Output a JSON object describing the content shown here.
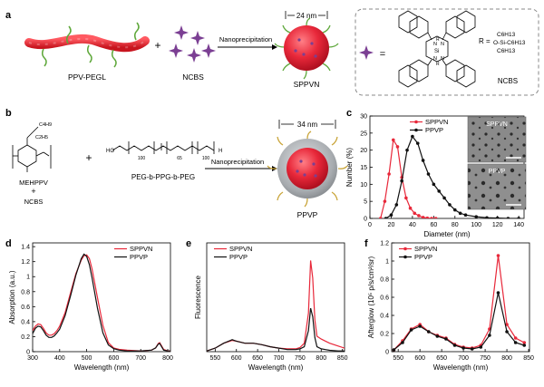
{
  "figure": {
    "panel_labels": [
      "a",
      "b",
      "c",
      "d",
      "e",
      "f"
    ],
    "colors": {
      "sppvn": "#e8283a",
      "ppvp": "#111111",
      "chain": "#e3232f",
      "ncbs": "#7b3f93",
      "peg": "#5fa83b",
      "shell": "#9fa3a6"
    }
  },
  "panel_a": {
    "polymer_label": "PPV-PEGL",
    "plus": "+",
    "dye_label": "NCBS",
    "method": "Nanoprecipitation",
    "size": "24 nm",
    "product": "SPPVN",
    "legend_eq": "=",
    "structure_name": "NCBS",
    "r_label": "R =",
    "r_groups": [
      "C6H13",
      "O-Si-C6H13",
      "C6H13"
    ],
    "core_atoms": [
      "N",
      "N",
      "N",
      "N",
      "Si",
      "R",
      "R"
    ]
  },
  "panel_b": {
    "monomer_label": "MEHPPV",
    "plus_under": "+",
    "dye_label": "NCBS",
    "plus": "+",
    "copolymer_label": "PEG-b-PPG-b-PEG",
    "subscripts": [
      "100",
      "65",
      "100"
    ],
    "method": "Nanoprecipitation",
    "size": "34 nm",
    "product": "PPVP",
    "side_chains": [
      "C4H9",
      "C2H5"
    ]
  },
  "chart_data": [
    {
      "panel": "c",
      "type": "line",
      "xlabel": "Diameter (nm)",
      "ylabel": "Number (%)",
      "xlim": [
        0,
        145
      ],
      "ylim": [
        0,
        30
      ],
      "xticks": [
        0,
        20,
        40,
        60,
        80,
        100,
        120,
        140
      ],
      "yticks": [
        0,
        5,
        10,
        15,
        20,
        25,
        30
      ],
      "legend": "top-right",
      "insets": [
        "SPPVN",
        "PPVP"
      ],
      "series": [
        {
          "name": "SPPVN",
          "color": "#e8283a",
          "x": [
            10,
            14,
            18,
            22,
            26,
            30,
            34,
            38,
            42,
            46,
            50,
            54,
            58,
            62
          ],
          "y": [
            0,
            5,
            13,
            23,
            21,
            12,
            6,
            3,
            1.5,
            0.8,
            0.3,
            0.1,
            0,
            0
          ]
        },
        {
          "name": "PPVP",
          "color": "#111111",
          "x": [
            15,
            20,
            25,
            30,
            35,
            40,
            45,
            50,
            55,
            60,
            65,
            70,
            75,
            80,
            85,
            90,
            100,
            110,
            120,
            130,
            140
          ],
          "y": [
            0,
            1,
            4,
            11,
            20,
            24,
            22,
            17,
            13,
            10,
            8,
            6,
            4,
            2.5,
            1.5,
            1,
            0.5,
            0.2,
            0.1,
            0,
            0
          ]
        }
      ]
    },
    {
      "panel": "d",
      "type": "line",
      "xlabel": "Wavelength (nm)",
      "ylabel": "Absorption (a.u.)",
      "xlim": [
        300,
        810
      ],
      "ylim": [
        0,
        1.45
      ],
      "xticks": [
        300,
        400,
        500,
        600,
        700,
        800
      ],
      "yticks": [
        0.0,
        0.2,
        0.4,
        0.6,
        0.8,
        1.0,
        1.2,
        1.4
      ],
      "legend": "top-right",
      "series": [
        {
          "name": "SPPVN",
          "color": "#e8283a",
          "x": [
            300,
            310,
            320,
            330,
            340,
            350,
            360,
            370,
            380,
            390,
            400,
            420,
            440,
            460,
            480,
            490,
            500,
            510,
            520,
            540,
            560,
            580,
            600,
            620,
            650,
            700,
            740,
            755,
            765,
            770,
            775,
            785,
            800,
            810
          ],
          "y": [
            0.28,
            0.34,
            0.37,
            0.36,
            0.31,
            0.25,
            0.22,
            0.22,
            0.24,
            0.28,
            0.34,
            0.52,
            0.78,
            1.04,
            1.22,
            1.28,
            1.29,
            1.24,
            1.1,
            0.72,
            0.35,
            0.12,
            0.05,
            0.03,
            0.02,
            0.01,
            0.02,
            0.05,
            0.11,
            0.12,
            0.09,
            0.03,
            0.01,
            0.01
          ]
        },
        {
          "name": "PPVP",
          "color": "#111111",
          "x": [
            300,
            310,
            320,
            330,
            340,
            350,
            360,
            370,
            380,
            390,
            400,
            420,
            440,
            460,
            480,
            490,
            500,
            510,
            520,
            540,
            560,
            580,
            600,
            620,
            650,
            700,
            740,
            755,
            765,
            770,
            775,
            785,
            800,
            810
          ],
          "y": [
            0.24,
            0.31,
            0.34,
            0.33,
            0.28,
            0.22,
            0.19,
            0.19,
            0.21,
            0.25,
            0.3,
            0.48,
            0.74,
            1.02,
            1.24,
            1.3,
            1.27,
            1.16,
            0.98,
            0.58,
            0.25,
            0.09,
            0.04,
            0.02,
            0.01,
            0.01,
            0.02,
            0.05,
            0.1,
            0.11,
            0.08,
            0.02,
            0.01,
            0.01
          ]
        }
      ]
    },
    {
      "panel": "e",
      "type": "line",
      "xlabel": "Wavelength (nm)",
      "ylabel": "Fluorescence",
      "xlim": [
        530,
        855
      ],
      "ylim": [
        0,
        1.55
      ],
      "xticks": [
        550,
        600,
        650,
        700,
        750,
        800,
        850
      ],
      "yticks": [],
      "legend": "top-left",
      "series": [
        {
          "name": "SPPVN",
          "color": "#e8283a",
          "x": [
            530,
            550,
            570,
            590,
            600,
            620,
            640,
            660,
            680,
            700,
            720,
            740,
            750,
            760,
            770,
            775,
            780,
            785,
            790,
            800,
            810,
            820,
            840,
            855
          ],
          "y": [
            0.01,
            0.05,
            0.12,
            0.16,
            0.15,
            0.12,
            0.12,
            0.1,
            0.07,
            0.05,
            0.04,
            0.04,
            0.06,
            0.12,
            0.55,
            1.3,
            1.05,
            0.45,
            0.22,
            0.18,
            0.15,
            0.12,
            0.08,
            0.05
          ]
        },
        {
          "name": "PPVP",
          "color": "#111111",
          "x": [
            530,
            550,
            570,
            590,
            600,
            620,
            640,
            660,
            680,
            700,
            720,
            740,
            750,
            760,
            770,
            775,
            780,
            785,
            790,
            800,
            810,
            820,
            840,
            855
          ],
          "y": [
            0.01,
            0.05,
            0.12,
            0.17,
            0.15,
            0.12,
            0.12,
            0.1,
            0.07,
            0.05,
            0.03,
            0.03,
            0.04,
            0.07,
            0.3,
            0.62,
            0.5,
            0.2,
            0.07,
            0.04,
            0.03,
            0.02,
            0.01,
            0.01
          ]
        }
      ]
    },
    {
      "panel": "f",
      "type": "line",
      "xlabel": "Wavelength (nm)",
      "ylabel": "Afterglow (10⁵ p/s/cm²/sr)",
      "xlim": [
        535,
        852
      ],
      "ylim": [
        0,
        1.2
      ],
      "xticks": [
        550,
        600,
        650,
        700,
        750,
        800,
        850
      ],
      "yticks": [
        0.0,
        0.2,
        0.4,
        0.6,
        0.8,
        1.0,
        1.2
      ],
      "legend": "top-left",
      "series": [
        {
          "name": "SPPVN",
          "color": "#e8283a",
          "x": [
            540,
            560,
            580,
            600,
            620,
            640,
            660,
            680,
            700,
            720,
            740,
            760,
            780,
            800,
            820,
            840
          ],
          "y": [
            0.02,
            0.12,
            0.25,
            0.3,
            0.22,
            0.18,
            0.15,
            0.08,
            0.05,
            0.04,
            0.07,
            0.25,
            1.06,
            0.3,
            0.15,
            0.1
          ]
        },
        {
          "name": "PPVP",
          "color": "#111111",
          "x": [
            540,
            560,
            580,
            600,
            620,
            640,
            660,
            680,
            700,
            720,
            740,
            760,
            780,
            800,
            820,
            840
          ],
          "y": [
            0.02,
            0.1,
            0.24,
            0.28,
            0.22,
            0.17,
            0.14,
            0.07,
            0.04,
            0.03,
            0.05,
            0.18,
            0.65,
            0.22,
            0.1,
            0.07
          ]
        }
      ]
    }
  ]
}
